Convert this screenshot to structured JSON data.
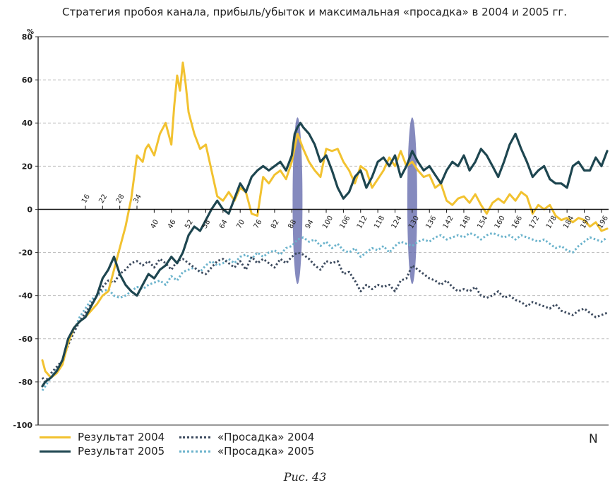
{
  "title": "Стратегия пробоя канала, прибыль/убыток и максимальная «просадка» в 2004 и 2005 гг.",
  "y_unit": "%",
  "x_label": "N",
  "caption": "Рис. 43",
  "colors": {
    "res2004": "#f2c230",
    "res2005": "#1e4650",
    "dd2004": "#3c4a5e",
    "dd2005": "#6bb3cc",
    "highlight": "#5c63a8",
    "grid": "#bfbfbf"
  },
  "legend": [
    {
      "label": "Результат 2004",
      "color": "#f2c230",
      "style": "solid"
    },
    {
      "label": "Результат 2005",
      "color": "#1e4650",
      "style": "solid"
    },
    {
      "label": "«Просадка» 2004",
      "color": "#3c4a5e",
      "style": "dotted"
    },
    {
      "label": "«Просадка» 2005",
      "color": "#6bb3cc",
      "style": "dotted"
    }
  ],
  "chart_data": {
    "type": "line",
    "title": "Стратегия пробоя канала, прибыль/убыток и максимальная «просадка» в 2004 и 2005 гг.",
    "xlabel": "N",
    "ylabel": "%",
    "ylim": [
      -100,
      80
    ],
    "xlim": [
      1,
      198
    ],
    "yticks": [
      80,
      60,
      40,
      20,
      0,
      -20,
      -40,
      -60,
      -80,
      -100
    ],
    "xticks_above": [
      16,
      22,
      28,
      34
    ],
    "xticks_below": [
      40,
      46,
      52,
      58,
      64,
      70,
      76,
      82,
      88,
      94,
      100,
      106,
      112,
      118,
      124,
      130,
      136,
      142,
      148,
      154,
      160,
      166,
      172,
      178,
      184,
      190,
      196
    ],
    "grid": true,
    "highlights": [
      90,
      130
    ],
    "series": [
      {
        "name": "Результат 2004",
        "x": [
          1,
          2,
          4,
          6,
          8,
          10,
          12,
          14,
          16,
          18,
          20,
          22,
          24,
          26,
          28,
          30,
          32,
          34,
          36,
          37,
          38,
          40,
          42,
          44,
          46,
          47,
          48,
          49,
          50,
          51,
          52,
          54,
          56,
          58,
          60,
          62,
          64,
          66,
          68,
          70,
          72,
          74,
          76,
          78,
          80,
          82,
          84,
          86,
          88,
          90,
          92,
          94,
          96,
          98,
          100,
          102,
          104,
          106,
          108,
          110,
          112,
          114,
          116,
          118,
          120,
          122,
          124,
          126,
          128,
          130,
          132,
          134,
          136,
          138,
          140,
          142,
          144,
          146,
          148,
          150,
          152,
          154,
          156,
          158,
          160,
          162,
          164,
          166,
          168,
          170,
          172,
          174,
          176,
          178,
          180,
          182,
          184,
          186,
          188,
          190,
          192,
          194,
          196,
          198
        ],
        "values": [
          -70,
          -75,
          -78,
          -76,
          -72,
          -62,
          -55,
          -52,
          -50,
          -47,
          -44,
          -40,
          -38,
          -28,
          -18,
          -8,
          5,
          25,
          22,
          28,
          30,
          25,
          35,
          40,
          30,
          48,
          62,
          55,
          68,
          58,
          45,
          35,
          28,
          30,
          18,
          6,
          4,
          8,
          4,
          10,
          8,
          -2,
          -3,
          15,
          12,
          16,
          18,
          14,
          22,
          35,
          28,
          22,
          18,
          15,
          28,
          27,
          28,
          22,
          18,
          12,
          20,
          18,
          10,
          14,
          18,
          24,
          20,
          27,
          20,
          22,
          18,
          15,
          16,
          10,
          12,
          4,
          2,
          5,
          6,
          3,
          7,
          2,
          -2,
          3,
          5,
          3,
          7,
          4,
          8,
          6,
          -2,
          2,
          0,
          2,
          -3,
          -5,
          -4,
          -6,
          -4,
          -5,
          -8,
          -6,
          -10,
          -9
        ]
      },
      {
        "name": "Результат 2005",
        "x": [
          1,
          2,
          4,
          6,
          8,
          10,
          12,
          14,
          16,
          18,
          20,
          22,
          24,
          26,
          28,
          30,
          32,
          34,
          36,
          38,
          40,
          42,
          44,
          46,
          48,
          50,
          52,
          54,
          56,
          58,
          60,
          62,
          64,
          66,
          68,
          70,
          72,
          74,
          76,
          78,
          80,
          82,
          84,
          86,
          88,
          89,
          90,
          91,
          92,
          94,
          96,
          98,
          100,
          102,
          104,
          106,
          108,
          110,
          112,
          114,
          116,
          118,
          120,
          122,
          124,
          126,
          128,
          130,
          132,
          134,
          136,
          138,
          140,
          142,
          144,
          146,
          148,
          150,
          152,
          154,
          156,
          158,
          160,
          162,
          164,
          166,
          168,
          170,
          172,
          174,
          176,
          178,
          180,
          182,
          184,
          186,
          188,
          190,
          192,
          194,
          196,
          198
        ],
        "values": [
          -82,
          -80,
          -78,
          -75,
          -70,
          -60,
          -55,
          -52,
          -50,
          -45,
          -40,
          -32,
          -28,
          -22,
          -30,
          -35,
          -38,
          -40,
          -35,
          -30,
          -32,
          -28,
          -26,
          -22,
          -25,
          -20,
          -12,
          -8,
          -10,
          -5,
          0,
          4,
          0,
          -2,
          5,
          12,
          8,
          15,
          18,
          20,
          18,
          20,
          22,
          18,
          25,
          35,
          38,
          40,
          38,
          35,
          30,
          22,
          25,
          18,
          10,
          5,
          8,
          15,
          18,
          10,
          15,
          22,
          24,
          20,
          25,
          15,
          20,
          27,
          22,
          18,
          20,
          16,
          12,
          18,
          22,
          20,
          25,
          18,
          22,
          28,
          25,
          20,
          15,
          22,
          30,
          35,
          28,
          22,
          15,
          18,
          20,
          14,
          12,
          12,
          10,
          20,
          22,
          18,
          18,
          24,
          20,
          27
        ]
      },
      {
        "name": "«Просадка» 2004",
        "x": [
          1,
          2,
          4,
          6,
          8,
          10,
          12,
          14,
          16,
          18,
          20,
          22,
          24,
          26,
          28,
          30,
          32,
          34,
          36,
          38,
          40,
          42,
          44,
          46,
          48,
          50,
          52,
          54,
          56,
          58,
          60,
          62,
          64,
          66,
          68,
          70,
          72,
          74,
          76,
          78,
          80,
          82,
          84,
          86,
          88,
          90,
          92,
          94,
          96,
          98,
          100,
          102,
          104,
          106,
          108,
          110,
          112,
          114,
          116,
          118,
          120,
          122,
          124,
          126,
          128,
          130,
          132,
          134,
          136,
          138,
          140,
          142,
          144,
          146,
          148,
          150,
          152,
          154,
          156,
          158,
          160,
          162,
          164,
          166,
          168,
          170,
          172,
          174,
          176,
          178,
          180,
          182,
          184,
          186,
          188,
          190,
          192,
          194,
          196,
          198
        ],
        "values": [
          -78,
          -80,
          -76,
          -73,
          -70,
          -63,
          -57,
          -52,
          -48,
          -44,
          -40,
          -36,
          -33,
          -34,
          -30,
          -28,
          -25,
          -24,
          -26,
          -24,
          -27,
          -23,
          -25,
          -28,
          -24,
          -23,
          -25,
          -27,
          -29,
          -30,
          -27,
          -24,
          -23,
          -25,
          -27,
          -24,
          -28,
          -22,
          -25,
          -23,
          -25,
          -27,
          -23,
          -25,
          -22,
          -20,
          -21,
          -23,
          -26,
          -28,
          -24,
          -25,
          -24,
          -30,
          -29,
          -33,
          -38,
          -35,
          -37,
          -35,
          -36,
          -35,
          -38,
          -33,
          -32,
          -26,
          -28,
          -30,
          -32,
          -33,
          -35,
          -33,
          -36,
          -38,
          -37,
          -38,
          -36,
          -40,
          -41,
          -40,
          -38,
          -41,
          -40,
          -42,
          -43,
          -45,
          -43,
          -44,
          -45,
          -46,
          -44,
          -47,
          -48,
          -49,
          -47,
          -46,
          -48,
          -50,
          -49,
          -48
        ]
      },
      {
        "name": "«Просадка» 2005",
        "x": [
          1,
          2,
          4,
          6,
          8,
          10,
          12,
          14,
          16,
          18,
          20,
          22,
          24,
          26,
          28,
          30,
          32,
          34,
          36,
          38,
          40,
          42,
          44,
          46,
          48,
          50,
          52,
          54,
          56,
          58,
          60,
          62,
          64,
          66,
          68,
          70,
          72,
          74,
          76,
          78,
          80,
          82,
          84,
          86,
          88,
          90,
          92,
          94,
          96,
          98,
          100,
          102,
          104,
          106,
          108,
          110,
          112,
          114,
          116,
          118,
          120,
          122,
          124,
          126,
          128,
          130,
          132,
          134,
          136,
          138,
          140,
          142,
          144,
          146,
          148,
          150,
          152,
          154,
          156,
          158,
          160,
          162,
          164,
          166,
          168,
          170,
          172,
          174,
          176,
          178,
          180,
          182,
          184,
          186,
          188,
          190,
          192,
          194,
          196,
          198
        ],
        "values": [
          -84,
          -82,
          -78,
          -74,
          -70,
          -62,
          -56,
          -50,
          -46,
          -42,
          -40,
          -38,
          -37,
          -40,
          -41,
          -40,
          -38,
          -36,
          -37,
          -35,
          -34,
          -33,
          -35,
          -31,
          -33,
          -29,
          -28,
          -27,
          -29,
          -26,
          -24,
          -26,
          -25,
          -23,
          -25,
          -22,
          -21,
          -23,
          -20,
          -22,
          -20,
          -19,
          -21,
          -18,
          -17,
          -14,
          -13,
          -15,
          -14,
          -17,
          -15,
          -18,
          -16,
          -19,
          -20,
          -18,
          -22,
          -20,
          -18,
          -19,
          -17,
          -20,
          -17,
          -15,
          -16,
          -17,
          -15,
          -14,
          -15,
          -13,
          -12,
          -14,
          -13,
          -12,
          -13,
          -11,
          -12,
          -14,
          -12,
          -11,
          -12,
          -13,
          -12,
          -14,
          -12,
          -13,
          -14,
          -15,
          -14,
          -16,
          -18,
          -17,
          -19,
          -20,
          -17,
          -15,
          -13,
          -14,
          -15,
          -13
        ]
      }
    ]
  }
}
